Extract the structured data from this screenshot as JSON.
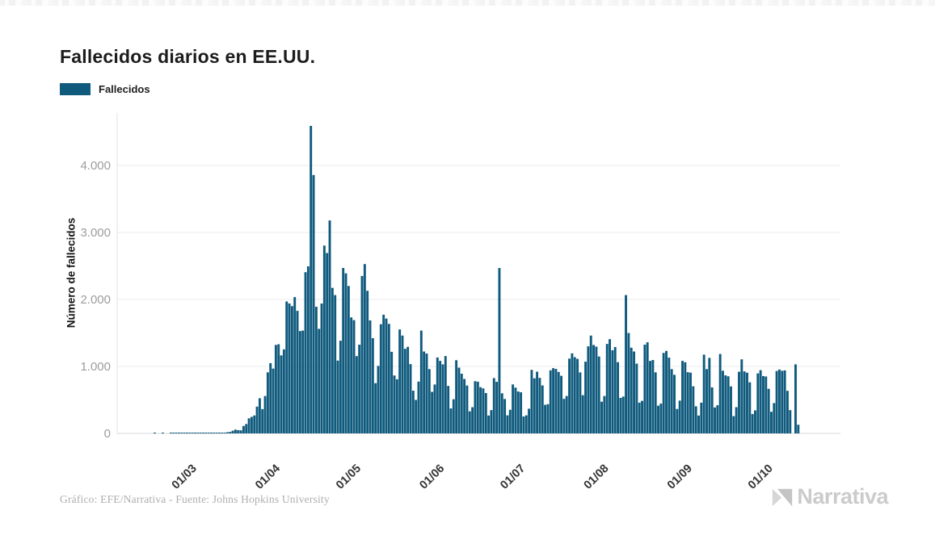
{
  "header": {
    "title": "Fallecidos diarios en EE.UU."
  },
  "legend": {
    "label": "Fallecidos",
    "swatch_color": "#0f5a7d"
  },
  "y_axis": {
    "label": "Número de fallecidos"
  },
  "footer": {
    "credit": "Gráfico: EFE/Narrativa - Fuente: Johns Hopkins University"
  },
  "brand": {
    "name": "Narrativa",
    "color": "#cbcbcb"
  },
  "colors": {
    "bar": "#0f5a7d",
    "gridline": "#ebebeb",
    "axis_line": "#d8d8d8",
    "left_border": "#e3e3e3",
    "y_tick_text": "#9c9c9c",
    "x_tick_text": "#333333"
  },
  "chart_data": {
    "type": "bar",
    "title": "Fallecidos diarios en EE.UU.",
    "xlabel": "",
    "ylabel": "Número de fallecidos",
    "legend_position": "top-left",
    "grid": true,
    "ylim": [
      0,
      4650
    ],
    "series_name": "Fallecidos",
    "start_date": "2020-02-15",
    "unit": "fallecidos por día",
    "y_ticks": [
      {
        "label": "0",
        "value": 0
      },
      {
        "label": "1.000",
        "value": 1000
      },
      {
        "label": "2.000",
        "value": 2000
      },
      {
        "label": "3.000",
        "value": 3000
      },
      {
        "label": "4.000",
        "value": 4000
      }
    ],
    "x_ticks": [
      {
        "label": "01/03",
        "day_index": 15
      },
      {
        "label": "01/04",
        "day_index": 46
      },
      {
        "label": "01/05",
        "day_index": 76
      },
      {
        "label": "01/06",
        "day_index": 107
      },
      {
        "label": "01/07",
        "day_index": 137
      },
      {
        "label": "01/08",
        "day_index": 168
      },
      {
        "label": "01/09",
        "day_index": 199
      },
      {
        "label": "01/10",
        "day_index": 229
      }
    ],
    "values": [
      0,
      0,
      0,
      1,
      0,
      0,
      1,
      0,
      0,
      1,
      1,
      2,
      1,
      1,
      1,
      1,
      5,
      2,
      4,
      1,
      3,
      2,
      3,
      4,
      4,
      8,
      3,
      8,
      9,
      11,
      18,
      23,
      41,
      57,
      49,
      46,
      111,
      140,
      225,
      247,
      268,
      400,
      525,
      363,
      558,
      912,
      1049,
      968,
      1321,
      1331,
      1165,
      1255,
      1970,
      1940,
      1900,
      2035,
      1830,
      1528,
      1535,
      2407,
      2494,
      4591,
      3857,
      1891,
      1561,
      1939,
      2804,
      2693,
      3179,
      2173,
      2065,
      1087,
      1384,
      2470,
      2390,
      2201,
      1732,
      1691,
      1154,
      1324,
      2350,
      2528,
      2129,
      1687,
      1422,
      750,
      1008,
      1630,
      1772,
      1715,
      1635,
      1218,
      865,
      808,
      1552,
      1461,
      1263,
      1293,
      1035,
      638,
      500,
      774,
      1535,
      1223,
      1193,
      960,
      621,
      730,
      1134,
      1083,
      1031,
      1155,
      709,
      373,
      510,
      1093,
      982,
      891,
      813,
      715,
      330,
      391,
      780,
      772,
      690,
      672,
      603,
      267,
      348,
      826,
      770,
      2469,
      599,
      514,
      270,
      353,
      731,
      684,
      626,
      614,
      253,
      270,
      369,
      949,
      823,
      922,
      829,
      716,
      427,
      436,
      942,
      974,
      963,
      918,
      860,
      516,
      559,
      1117,
      1195,
      1139,
      1113,
      911,
      571,
      1071,
      1300,
      1461,
      1320,
      1296,
      1148,
      474,
      558,
      1336,
      1407,
      1242,
      1290,
      1064,
      530,
      550,
      2065,
      1499,
      1280,
      1223,
      1042,
      459,
      486,
      1325,
      1360,
      1082,
      1096,
      912,
      414,
      445,
      1202,
      1232,
      1132,
      960,
      875,
      365,
      490,
      1083,
      1063,
      914,
      907,
      704,
      405,
      267,
      459,
      1176,
      960,
      1128,
      687,
      388,
      421,
      1186,
      936,
      867,
      853,
      702,
      258,
      392,
      921,
      1106,
      926,
      907,
      763,
      290,
      344,
      896,
      944,
      856,
      850,
      666,
      323,
      453,
      932,
      954,
      935,
      941,
      636,
      348,
      0,
      1031,
      130
    ]
  }
}
